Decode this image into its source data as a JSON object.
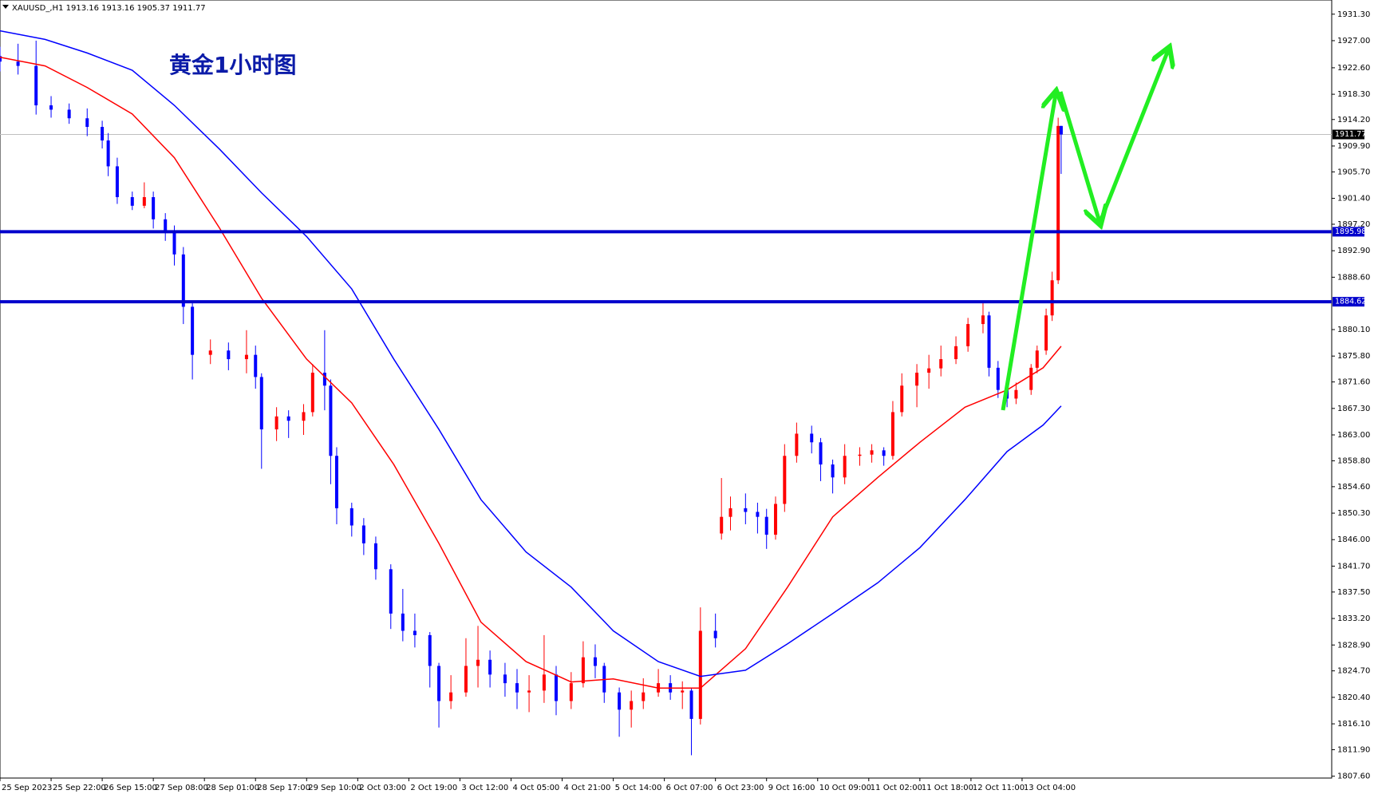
{
  "chart_data": {
    "type": "candlestick",
    "title": "XAUUSD_,H1  1913.16 1913.16 1905.37 1911.77",
    "annotation": "黄金1小时图",
    "up_color": "#ff0000",
    "down_color": "#0000ff",
    "x": [
      0,
      6,
      12,
      17,
      23,
      29,
      34,
      36,
      39,
      44,
      48,
      51,
      55,
      58,
      61,
      64,
      70,
      76,
      82,
      85,
      87,
      92,
      96,
      101,
      104,
      108,
      110,
      112,
      117,
      121,
      125,
      130,
      134,
      138,
      143,
      146,
      150,
      155,
      159,
      163,
      168,
      172,
      176,
      181,
      185,
      190,
      194,
      198,
      201,
      206,
      210,
      214,
      219,
      223,
      227,
      230,
      233,
      238,
      240,
      243,
      248,
      252,
      255,
      258,
      261,
      265,
      270,
      273,
      277,
      281,
      286,
      290,
      294,
      297,
      300,
      305,
      309,
      313,
      318,
      322,
      327,
      329,
      332,
      335,
      338,
      343,
      345,
      348,
      350,
      352,
      353
    ],
    "open": [
      1924.5,
      1923.6,
      1922.9,
      1916.5,
      1915.8,
      1914.4,
      1913,
      1910.8,
      1906.6,
      1901.6,
      1900.2,
      1901.6,
      1898,
      1895.9,
      1892.3,
      1883.8,
      1876,
      1876.7,
      1875.3,
      1876,
      1872.4,
      1863.9,
      1866,
      1865.3,
      1866.7,
      1873.1,
      1871,
      1859.6,
      1851.1,
      1848.3,
      1845.4,
      1841.2,
      1834,
      1831.2,
      1830.5,
      1825.5,
      1819.8,
      1821.2,
      1825.5,
      1826.5,
      1824.1,
      1822.7,
      1821.2,
      1821.5,
      1824.1,
      1819.8,
      1822.7,
      1826.9,
      1825.5,
      1821.2,
      1818.4,
      1819.8,
      1821.2,
      1822.7,
      1821.2,
      1821.5,
      1816.9,
      1831.2,
      1847,
      1849.7,
      1851.1,
      1850.5,
      1849.7,
      1846.8,
      1851.8,
      1859.6,
      1863.2,
      1861.8,
      1858.2,
      1856.1,
      1859.6,
      1859.8,
      1860.5,
      1859.6,
      1866.7,
      1871,
      1873.1,
      1873.8,
      1875.3,
      1877.4,
      1881,
      1882.4,
      1873.9,
      1870.3,
      1868.9,
      1870.3,
      1873.9,
      1876.7,
      1882.4,
      1888.1,
      1913.16
    ],
    "high": [
      1926,
      1926.5,
      1927,
      1918,
      1916.8,
      1916,
      1914,
      1912,
      1908,
      1902.5,
      1904,
      1902.5,
      1899,
      1897,
      1893.5,
      1884.5,
      1878.5,
      1878,
      1880,
      1877.5,
      1873,
      1867.5,
      1867,
      1868,
      1874.5,
      1880,
      1872,
      1861,
      1852,
      1849.5,
      1846.5,
      1842,
      1838,
      1834,
      1831,
      1826,
      1824,
      1830,
      1832,
      1828,
      1826,
      1825,
      1824,
      1830.5,
      1825.5,
      1824.5,
      1829.5,
      1829,
      1826,
      1822,
      1821.5,
      1823.5,
      1825,
      1824,
      1823,
      1822,
      1835,
      1834,
      1856,
      1853,
      1853.5,
      1852,
      1851,
      1853,
      1861.5,
      1865,
      1864.5,
      1862.5,
      1859,
      1861.5,
      1861,
      1861.5,
      1861,
      1868.5,
      1873,
      1874.5,
      1876,
      1877.5,
      1879,
      1882,
      1884.8,
      1883,
      1875,
      1871.5,
      1871.5,
      1874.5,
      1877.5,
      1883.5,
      1889.5,
      1914.5,
      1913.16
    ],
    "low": [
      1922,
      1921.5,
      1915,
      1914.5,
      1913.5,
      1911.5,
      1909.5,
      1905,
      1900.5,
      1899.5,
      1899.8,
      1896.5,
      1894.5,
      1890.5,
      1881,
      1872,
      1874.5,
      1873.5,
      1873,
      1870.5,
      1857.5,
      1862,
      1862.5,
      1863,
      1866,
      1867,
      1855,
      1848.5,
      1846.5,
      1843.5,
      1839.5,
      1831.5,
      1829.5,
      1828.5,
      1822,
      1815.5,
      1818.5,
      1820.5,
      1822,
      1822,
      1820.5,
      1818.5,
      1818,
      1819.5,
      1817.5,
      1818.5,
      1822,
      1823.5,
      1819.5,
      1814,
      1815.5,
      1818.5,
      1820.5,
      1820,
      1818.5,
      1811,
      1816,
      1828.5,
      1846,
      1847.5,
      1848.5,
      1847,
      1844.5,
      1846,
      1850.5,
      1858.5,
      1860,
      1855.5,
      1853.5,
      1855,
      1858,
      1858.5,
      1858,
      1859,
      1866,
      1867.5,
      1870.5,
      1872.5,
      1874.5,
      1876.5,
      1879.5,
      1872.5,
      1869,
      1867.5,
      1868,
      1869.5,
      1873,
      1876,
      1881.5,
      1887.5,
      1905.37
    ],
    "close": [
      1923.6,
      1922.9,
      1916.5,
      1915.8,
      1914.4,
      1913,
      1910.8,
      1906.6,
      1901.6,
      1900.2,
      1901.6,
      1898,
      1895.9,
      1892.3,
      1883.8,
      1876,
      1876.7,
      1875.3,
      1876,
      1872.4,
      1863.9,
      1866,
      1865.3,
      1866.7,
      1873.1,
      1871,
      1859.6,
      1851.1,
      1848.3,
      1845.4,
      1841.2,
      1834,
      1831.2,
      1830.5,
      1825.5,
      1819.8,
      1821.2,
      1825.5,
      1826.5,
      1824.1,
      1822.7,
      1821.2,
      1821.5,
      1824.1,
      1819.8,
      1822.7,
      1826.9,
      1825.5,
      1821.2,
      1818.4,
      1819.8,
      1821.2,
      1822.7,
      1821.2,
      1821.5,
      1816.9,
      1831.2,
      1830,
      1849.7,
      1851.1,
      1850.5,
      1849.7,
      1846.8,
      1851.8,
      1859.6,
      1863.2,
      1861.8,
      1858.2,
      1856.1,
      1859.6,
      1859.8,
      1860.5,
      1859.6,
      1866.7,
      1871,
      1873.1,
      1873.8,
      1875.3,
      1877.4,
      1881,
      1882.4,
      1873.9,
      1870.3,
      1868.9,
      1870.3,
      1873.9,
      1876.7,
      1882.4,
      1888.1,
      1913.16,
      1911.77
    ],
    "series": [
      {
        "color": "#ff0000",
        "x": [
          0,
          15,
          29,
          44,
          58,
          73,
          87,
          102,
          117,
          131,
          146,
          160,
          175,
          190,
          204,
          219,
          233,
          248,
          262,
          277,
          292,
          306,
          321,
          335,
          347,
          353
        ],
        "values": [
          1924.3,
          1922.9,
          1919.4,
          1915.1,
          1908,
          1896.6,
          1885.2,
          1875.3,
          1868.2,
          1858.2,
          1845.4,
          1832.6,
          1826.2,
          1822.9,
          1823.4,
          1821.9,
          1821.9,
          1828.3,
          1838.3,
          1849.7,
          1856.1,
          1861.8,
          1867.5,
          1870.3,
          1873.9,
          1877.4
        ]
      },
      {
        "color": "#0000ff",
        "x": [
          0,
          15,
          29,
          44,
          58,
          73,
          87,
          102,
          117,
          131,
          146,
          160,
          175,
          190,
          204,
          219,
          233,
          248,
          262,
          277,
          292,
          306,
          321,
          335,
          347,
          353
        ],
        "values": [
          1928.6,
          1927.2,
          1925,
          1922.2,
          1916.5,
          1909.4,
          1902.3,
          1895.2,
          1886.7,
          1875.3,
          1863.9,
          1852.5,
          1844,
          1838.3,
          1831.2,
          1826.2,
          1823.8,
          1824.8,
          1829.1,
          1834,
          1839,
          1844.7,
          1852.5,
          1860.3,
          1864.6,
          1867.7
        ]
      }
    ],
    "hlines": [
      {
        "value": 1895.98,
        "color": "#0000cc"
      },
      {
        "value": 1884.62,
        "color": "#0000cc"
      }
    ],
    "current_price": 1911.77,
    "xlim": [
      0,
      443
    ],
    "ylim": [
      1807.3,
      1933.6
    ],
    "xticks": [
      {
        "value": 0,
        "label": "25 Sep 2023"
      },
      {
        "value": 17,
        "label": "25 Sep 22:00"
      },
      {
        "value": 34,
        "label": "26 Sep 15:00"
      },
      {
        "value": 51,
        "label": "27 Sep 08:00"
      },
      {
        "value": 68,
        "label": "28 Sep 01:00"
      },
      {
        "value": 85,
        "label": "28 Sep 17:00"
      },
      {
        "value": 102,
        "label": "29 Sep 10:00"
      },
      {
        "value": 119,
        "label": "2 Oct 03:00"
      },
      {
        "value": 136,
        "label": "2 Oct 19:00"
      },
      {
        "value": 153,
        "label": "3 Oct 12:00"
      },
      {
        "value": 170,
        "label": "4 Oct 05:00"
      },
      {
        "value": 187,
        "label": "4 Oct 21:00"
      },
      {
        "value": 204,
        "label": "5 Oct 14:00"
      },
      {
        "value": 221,
        "label": "6 Oct 07:00"
      },
      {
        "value": 238,
        "label": "6 Oct 23:00"
      },
      {
        "value": 255,
        "label": "9 Oct 16:00"
      },
      {
        "value": 272,
        "label": "10 Oct 09:00"
      },
      {
        "value": 289,
        "label": "11 Oct 02:00"
      },
      {
        "value": 306,
        "label": "11 Oct 18:00"
      },
      {
        "value": 323,
        "label": "12 Oct 11:00"
      },
      {
        "value": 340,
        "label": "13 Oct 04:00"
      }
    ],
    "yticks": [
      {
        "value": 1931.3,
        "label": "1931.30"
      },
      {
        "value": 1927,
        "label": "1927.00"
      },
      {
        "value": 1922.6,
        "label": "1922.60"
      },
      {
        "value": 1918.3,
        "label": "1918.30"
      },
      {
        "value": 1914.2,
        "label": "1914.20"
      },
      {
        "value": 1909.9,
        "label": "1909.90"
      },
      {
        "value": 1905.7,
        "label": "1905.70"
      },
      {
        "value": 1901.4,
        "label": "1901.40"
      },
      {
        "value": 1897.2,
        "label": "1897.20"
      },
      {
        "value": 1892.9,
        "label": "1892.90"
      },
      {
        "value": 1888.6,
        "label": "1888.60"
      },
      {
        "value": 1880.1,
        "label": "1880.10"
      },
      {
        "value": 1875.8,
        "label": "1875.80"
      },
      {
        "value": 1871.6,
        "label": "1871.60"
      },
      {
        "value": 1867.3,
        "label": "1867.30"
      },
      {
        "value": 1863,
        "label": "1863.00"
      },
      {
        "value": 1858.8,
        "label": "1858.80"
      },
      {
        "value": 1854.6,
        "label": "1854.60"
      },
      {
        "value": 1850.3,
        "label": "1850.30"
      },
      {
        "value": 1846,
        "label": "1846.00"
      },
      {
        "value": 1841.7,
        "label": "1841.70"
      },
      {
        "value": 1837.5,
        "label": "1837.50"
      },
      {
        "value": 1833.2,
        "label": "1833.20"
      },
      {
        "value": 1828.9,
        "label": "1828.90"
      },
      {
        "value": 1824.7,
        "label": "1824.70"
      },
      {
        "value": 1820.4,
        "label": "1820.40"
      },
      {
        "value": 1816.1,
        "label": "1816.10"
      },
      {
        "value": 1811.9,
        "label": "1811.90"
      },
      {
        "value": 1807.6,
        "label": "1807.60"
      }
    ]
  }
}
